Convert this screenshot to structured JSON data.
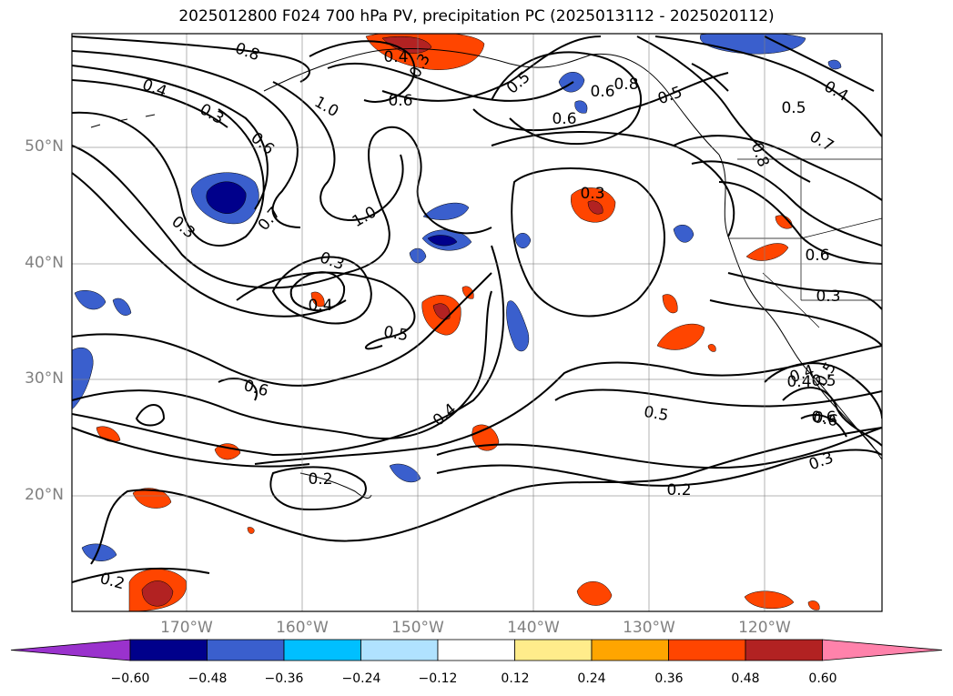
{
  "title": "2025012800 F024 700 hPa PV, precipitation PC (2025013112 - 2025020112)",
  "gridlines": true,
  "lat_labels": [
    "50°N",
    "40°N",
    "30°N",
    "20°N"
  ],
  "lon_labels": [
    "170°W",
    "160°W",
    "150°W",
    "140°W",
    "130°W",
    "120°W"
  ],
  "colorbar": {
    "extend": "both",
    "colors": [
      "#9a32cd",
      "#00008b",
      "#3a5fcd",
      "#00bfff",
      "#b0e2ff",
      "#ffffff",
      "#ffec8b",
      "#ffa500",
      "#ff4500",
      "#b22222",
      "#ff82ab"
    ],
    "tick_labels": [
      "−0.60",
      "−0.48",
      "−0.36",
      "−0.24",
      "−0.12",
      "0.12",
      "0.24",
      "0.36",
      "0.48",
      "0.60"
    ]
  },
  "contour_labels": [
    "0.8",
    "0.4",
    "0.3",
    "0.4",
    "0.3",
    "0.5",
    "0.6",
    "0.8",
    "0.5",
    "0.4",
    "0.5",
    "0.7",
    "0.8",
    "0.4",
    "0.5",
    "0.6",
    "1.0",
    "0.6",
    "0.6",
    "0.3",
    "0.7",
    "1.0",
    "0.3",
    "0.3",
    "0.4",
    "0.5",
    "0.6",
    "0.6",
    "0.3",
    "0.6",
    "0.4",
    "0.5",
    "0.4",
    "0.5",
    "0.6",
    "0.3",
    "0.2",
    "0.2",
    "0.2"
  ]
}
